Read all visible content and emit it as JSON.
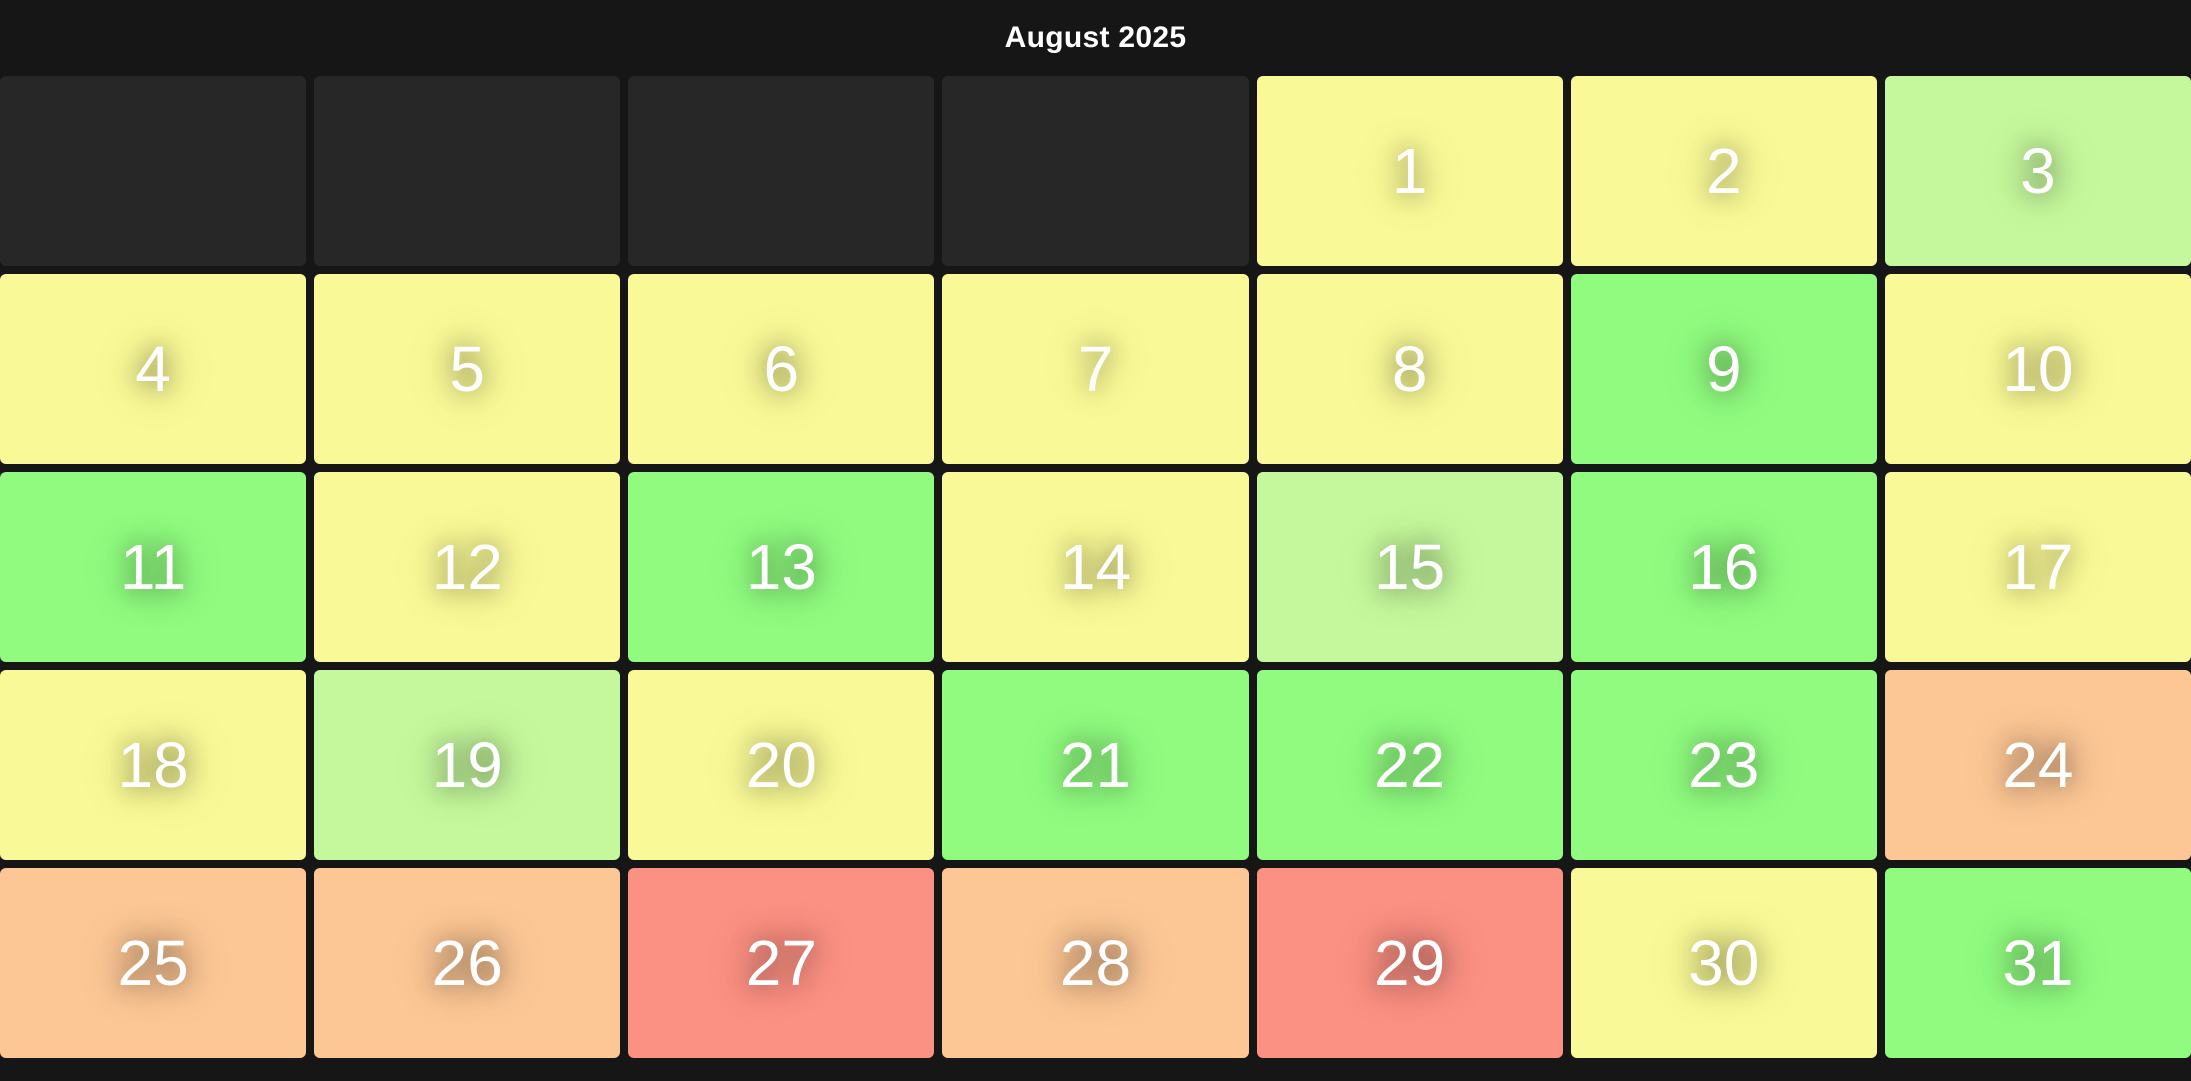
{
  "header": {
    "title": "August 2025"
  },
  "calendar": {
    "month_label": "August 2025",
    "columns": 7,
    "rows": 5,
    "cells": [
      {
        "day": "",
        "level": "empty"
      },
      {
        "day": "",
        "level": "empty"
      },
      {
        "day": "",
        "level": "empty"
      },
      {
        "day": "",
        "level": "empty"
      },
      {
        "day": "1",
        "level": "yellow"
      },
      {
        "day": "2",
        "level": "yellow"
      },
      {
        "day": "3",
        "level": "light_green"
      },
      {
        "day": "4",
        "level": "yellow"
      },
      {
        "day": "5",
        "level": "yellow"
      },
      {
        "day": "6",
        "level": "yellow"
      },
      {
        "day": "7",
        "level": "yellow"
      },
      {
        "day": "8",
        "level": "yellow"
      },
      {
        "day": "9",
        "level": "green"
      },
      {
        "day": "10",
        "level": "yellow"
      },
      {
        "day": "11",
        "level": "green"
      },
      {
        "day": "12",
        "level": "yellow"
      },
      {
        "day": "13",
        "level": "green"
      },
      {
        "day": "14",
        "level": "yellow"
      },
      {
        "day": "15",
        "level": "light_green"
      },
      {
        "day": "16",
        "level": "green"
      },
      {
        "day": "17",
        "level": "yellow"
      },
      {
        "day": "18",
        "level": "yellow"
      },
      {
        "day": "19",
        "level": "light_green"
      },
      {
        "day": "20",
        "level": "yellow"
      },
      {
        "day": "21",
        "level": "green"
      },
      {
        "day": "22",
        "level": "green"
      },
      {
        "day": "23",
        "level": "green"
      },
      {
        "day": "24",
        "level": "orange"
      },
      {
        "day": "25",
        "level": "orange"
      },
      {
        "day": "26",
        "level": "orange"
      },
      {
        "day": "27",
        "level": "salmon"
      },
      {
        "day": "28",
        "level": "orange"
      },
      {
        "day": "29",
        "level": "salmon"
      },
      {
        "day": "30",
        "level": "yellow"
      },
      {
        "day": "31",
        "level": "green"
      }
    ]
  },
  "colors": {
    "background": "#161616",
    "empty_cell": "#272727",
    "title_text": "#ffffff",
    "day_number_text": "#ffffff",
    "levels": {
      "yellow": "#f9f997",
      "light_green": "#c5f79c",
      "green": "#90fb7f",
      "orange": "#fcc795",
      "salmon": "#fb9183"
    }
  }
}
